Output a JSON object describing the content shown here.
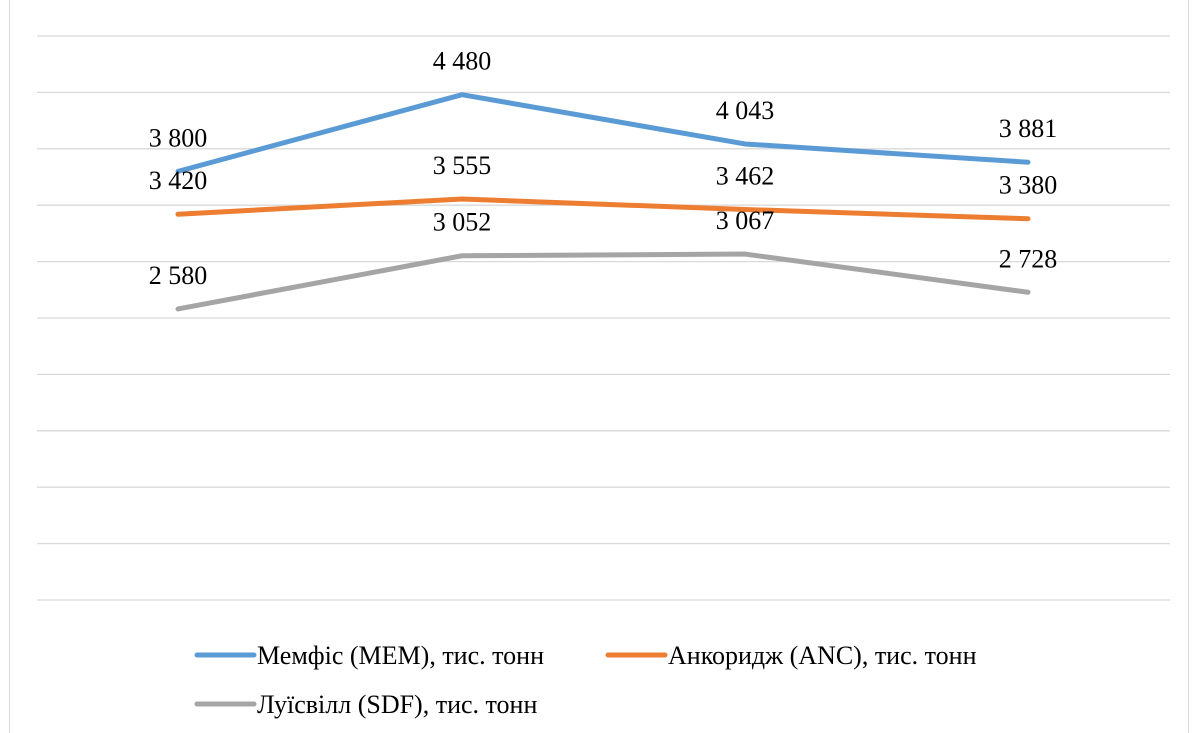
{
  "chart_data": {
    "type": "line",
    "categories": [
      "",
      "",
      "",
      ""
    ],
    "ylim": [
      0,
      5000
    ],
    "grid": true,
    "legend_placement": "bottom",
    "series": [
      {
        "name": "Мемфіс (MEM), тис. тонн",
        "color": "#5b9bd5",
        "values": [
          3800,
          4480,
          4043,
          3881
        ],
        "labels": [
          "3 800",
          "4 480",
          "4 043",
          "3 881"
        ]
      },
      {
        "name": "Анкоридж (ANC), тис. тонн",
        "color": "#ed7d31",
        "values": [
          3420,
          3555,
          3462,
          3380
        ],
        "labels": [
          "3 420",
          "3 555",
          "3 462",
          "3 380"
        ]
      },
      {
        "name": "Луїсвілл (SDF), тис. тонн",
        "color": "#a5a5a5",
        "values": [
          2580,
          3052,
          3067,
          2728
        ],
        "labels": [
          "2 580",
          "3 052",
          "3 067",
          "2 728"
        ]
      }
    ]
  }
}
